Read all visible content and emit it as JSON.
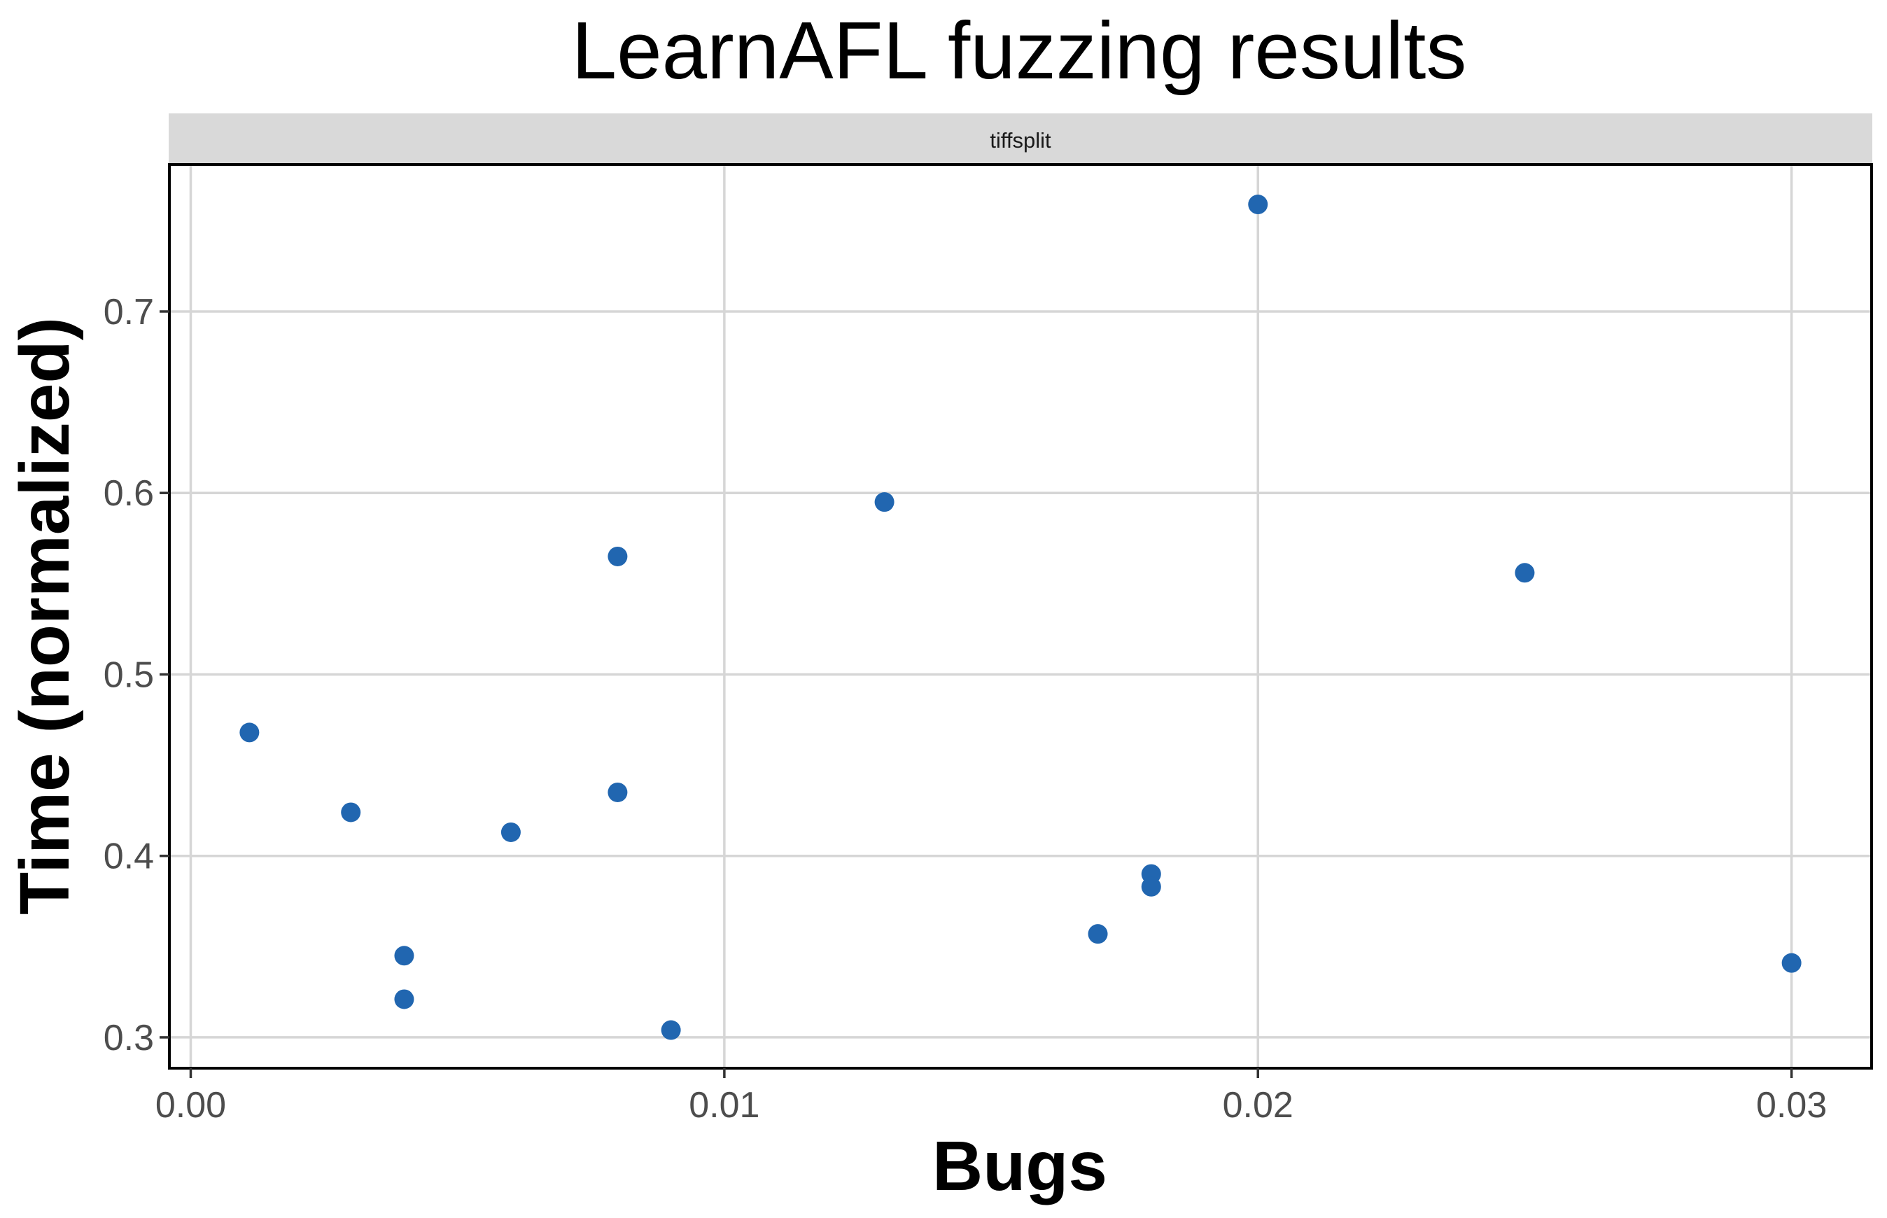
{
  "chart_data": {
    "type": "scatter",
    "title": "LearnAFL fuzzing results",
    "facet": "tiffsplit",
    "xlabel": "Bugs",
    "ylabel": "Time (normalized)",
    "xlim": [
      -0.0004,
      0.0315
    ],
    "ylim": [
      0.283,
      0.781
    ],
    "xticks": [
      0,
      0.01,
      0.02,
      0.03
    ],
    "xtick_labels": [
      "0.00",
      "0.01",
      "0.02",
      "0.03"
    ],
    "yticks": [
      0.3,
      0.4,
      0.5,
      0.6,
      0.7
    ],
    "ytick_labels": [
      "0.3",
      "0.4",
      "0.5",
      "0.6",
      "0.7"
    ],
    "grid": true,
    "legend": false,
    "point_color": "#2166b0",
    "points": [
      {
        "x": 0.0011,
        "y": 0.468
      },
      {
        "x": 0.003,
        "y": 0.424
      },
      {
        "x": 0.004,
        "y": 0.345
      },
      {
        "x": 0.004,
        "y": 0.321
      },
      {
        "x": 0.006,
        "y": 0.413
      },
      {
        "x": 0.008,
        "y": 0.565
      },
      {
        "x": 0.008,
        "y": 0.435
      },
      {
        "x": 0.009,
        "y": 0.304
      },
      {
        "x": 0.013,
        "y": 0.595
      },
      {
        "x": 0.017,
        "y": 0.357
      },
      {
        "x": 0.018,
        "y": 0.39
      },
      {
        "x": 0.018,
        "y": 0.383
      },
      {
        "x": 0.02,
        "y": 0.759
      },
      {
        "x": 0.025,
        "y": 0.556
      },
      {
        "x": 0.03,
        "y": 0.341
      }
    ]
  }
}
